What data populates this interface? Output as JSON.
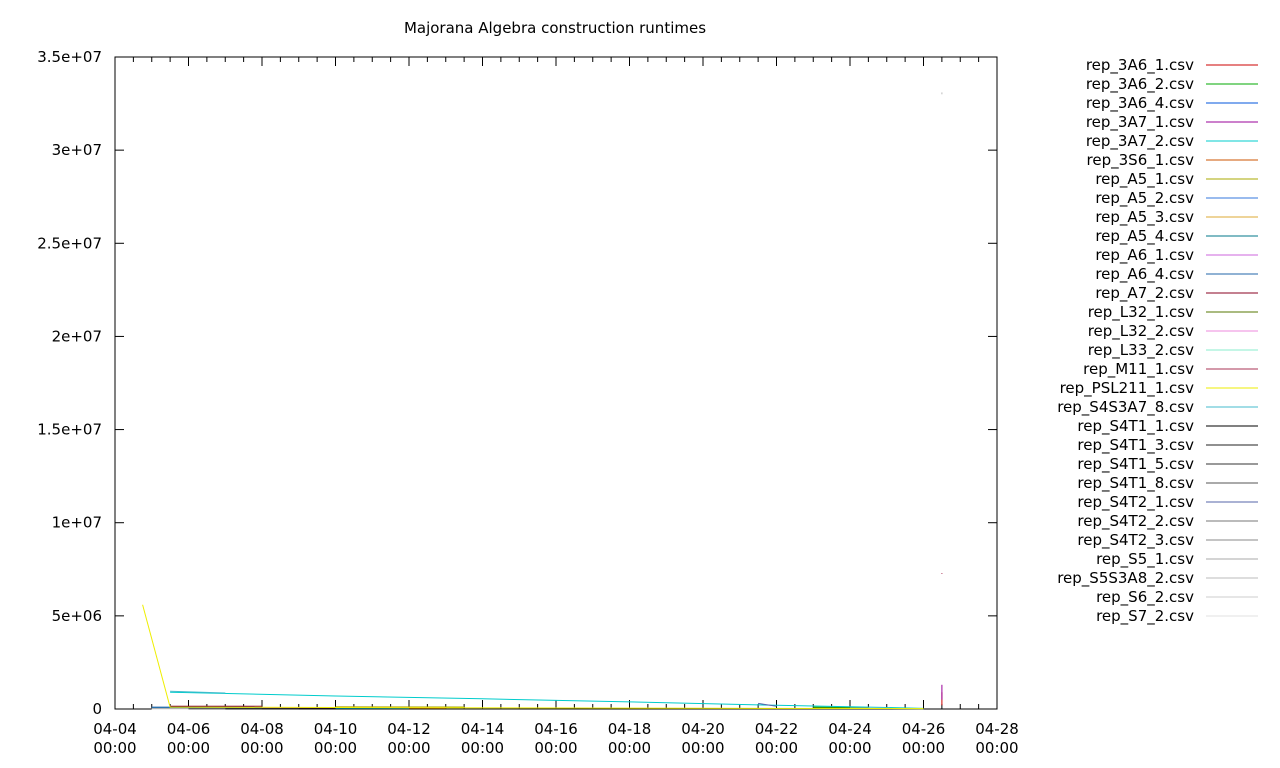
{
  "chart_data": {
    "type": "line",
    "title": "Majorana Algebra construction runtimes",
    "xlabel": "",
    "ylabel": "",
    "legend_position": "outside-right",
    "grid": false,
    "xlim": [
      "04-04 00:00",
      "04-28 00:00"
    ],
    "ylim": [
      0,
      35000000
    ],
    "x_ticks": [
      {
        "value": "04-04 00:00",
        "line1": "04-04",
        "line2": "00:00"
      },
      {
        "value": "04-06 00:00",
        "line1": "04-06",
        "line2": "00:00"
      },
      {
        "value": "04-08 00:00",
        "line1": "04-08",
        "line2": "00:00"
      },
      {
        "value": "04-10 00:00",
        "line1": "04-10",
        "line2": "00:00"
      },
      {
        "value": "04-12 00:00",
        "line1": "04-12",
        "line2": "00:00"
      },
      {
        "value": "04-14 00:00",
        "line1": "04-14",
        "line2": "00:00"
      },
      {
        "value": "04-16 00:00",
        "line1": "04-16",
        "line2": "00:00"
      },
      {
        "value": "04-18 00:00",
        "line1": "04-18",
        "line2": "00:00"
      },
      {
        "value": "04-20 00:00",
        "line1": "04-20",
        "line2": "00:00"
      },
      {
        "value": "04-22 00:00",
        "line1": "04-22",
        "line2": "00:00"
      },
      {
        "value": "04-24 00:00",
        "line1": "04-24",
        "line2": "00:00"
      },
      {
        "value": "04-26 00:00",
        "line1": "04-26",
        "line2": "00:00"
      },
      {
        "value": "04-28 00:00",
        "line1": "04-28",
        "line2": "00:00"
      }
    ],
    "y_ticks": [
      {
        "value": 0,
        "label": "0"
      },
      {
        "value": 5000000,
        "label": "5e+06"
      },
      {
        "value": 10000000,
        "label": "1e+07"
      },
      {
        "value": 15000000,
        "label": "1.5e+07"
      },
      {
        "value": 20000000,
        "label": "2e+07"
      },
      {
        "value": 25000000,
        "label": "2.5e+07"
      },
      {
        "value": 30000000,
        "label": "3e+07"
      },
      {
        "value": 35000000,
        "label": "3.5e+07"
      }
    ],
    "series": [
      {
        "name": "rep_3A6_1.csv",
        "color": "#cc0000",
        "points": [
          [
            "04-26 12:00",
            200000
          ],
          [
            "04-26 12:00",
            900000
          ]
        ]
      },
      {
        "name": "rep_3A6_2.csv",
        "color": "#00aa00",
        "points": [
          [
            "04-23 00:00",
            100000
          ],
          [
            "04-24 12:00",
            80000
          ]
        ]
      },
      {
        "name": "rep_3A6_4.csv",
        "color": "#0055dd",
        "points": [
          [
            "04-05 12:00",
            80000
          ],
          [
            "04-10 00:00",
            60000
          ]
        ]
      },
      {
        "name": "rep_3A7_1.csv",
        "color": "#990099",
        "points": [
          [
            "04-26 12:00",
            500000
          ],
          [
            "04-26 12:00",
            1300000
          ]
        ]
      },
      {
        "name": "rep_3A7_2.csv",
        "color": "#00cccc",
        "points": [
          [
            "04-05 12:00",
            900000
          ],
          [
            "04-06 00:00",
            880000
          ],
          [
            "04-10 00:00",
            700000
          ],
          [
            "04-14 00:00",
            550000
          ],
          [
            "04-18 00:00",
            380000
          ],
          [
            "04-22 00:00",
            200000
          ],
          [
            "04-25 00:00",
            80000
          ],
          [
            "04-26 00:00",
            30000
          ]
        ]
      },
      {
        "name": "rep_3S6_1.csv",
        "color": "#cc5500",
        "points": [
          [
            "04-10 00:00",
            60000
          ],
          [
            "04-13 00:00",
            50000
          ]
        ]
      },
      {
        "name": "rep_A5_1.csv",
        "color": "#aaaa00",
        "points": [
          [
            "04-10 00:00",
            120000
          ],
          [
            "04-13 12:00",
            110000
          ]
        ]
      },
      {
        "name": "rep_A5_2.csv",
        "color": "#3377dd",
        "points": [
          [
            "04-05 00:00",
            50000
          ],
          [
            "04-10 00:00",
            40000
          ]
        ]
      },
      {
        "name": "rep_A5_3.csv",
        "color": "#ddaa33",
        "points": [
          [
            "04-10 00:00",
            90000
          ],
          [
            "04-13 00:00",
            80000
          ]
        ]
      },
      {
        "name": "rep_A5_4.csv",
        "color": "#007788",
        "points": [
          [
            "04-05 00:00",
            40000
          ],
          [
            "04-12 00:00",
            30000
          ]
        ]
      },
      {
        "name": "rep_A6_1.csv",
        "color": "#cc66dd",
        "points": [
          [
            "04-08 00:00",
            60000
          ],
          [
            "04-10 00:00",
            50000
          ]
        ]
      },
      {
        "name": "rep_A6_4.csv",
        "color": "#2266aa",
        "points": [
          [
            "04-05 00:00",
            100000
          ],
          [
            "04-08 00:00",
            90000
          ]
        ]
      },
      {
        "name": "rep_A7_2.csv",
        "color": "#880022",
        "points": [
          [
            "04-05 12:00",
            150000
          ],
          [
            "04-08 00:00",
            150000
          ]
        ]
      },
      {
        "name": "rep_L32_1.csv",
        "color": "#557700",
        "points": [
          [
            "04-23 00:00",
            60000
          ],
          [
            "04-24 12:00",
            50000
          ]
        ]
      },
      {
        "name": "rep_L32_2.csv",
        "color": "#ee88dd",
        "points": [
          [
            "04-24 00:00",
            40000
          ],
          [
            "04-25 12:00",
            30000
          ]
        ]
      },
      {
        "name": "rep_L33_2.csv",
        "color": "#88eecc",
        "points": [
          [
            "04-24 00:00",
            30000
          ],
          [
            "04-26 00:00",
            20000
          ]
        ]
      },
      {
        "name": "rep_M11_1.csv",
        "color": "#aa3355",
        "points": [
          [
            "04-26 12:00",
            7300000
          ],
          [
            "04-26 12:00",
            7250000
          ]
        ]
      },
      {
        "name": "rep_PSL211_1.csv",
        "color": "#eeee00",
        "points": [
          [
            "04-04 18:00",
            5600000
          ],
          [
            "04-05 12:00",
            100000
          ],
          [
            "04-12 00:00",
            70000
          ],
          [
            "04-20 00:00",
            40000
          ],
          [
            "04-26 00:00",
            20000
          ]
        ]
      },
      {
        "name": "rep_S4S3A7_8.csv",
        "color": "#44bbcc",
        "points": [
          [
            "04-05 12:00",
            950000
          ],
          [
            "04-07 00:00",
            860000
          ]
        ]
      },
      {
        "name": "rep_S4T1_1.csv",
        "color": "#000000",
        "points": [
          [
            "04-05 00:00",
            20000
          ],
          [
            "04-10 00:00",
            20000
          ]
        ]
      },
      {
        "name": "rep_S4T1_3.csv",
        "color": "#222222",
        "points": [
          [
            "04-05 00:00",
            15000
          ],
          [
            "04-09 00:00",
            15000
          ]
        ]
      },
      {
        "name": "rep_S4T1_5.csv",
        "color": "#333333",
        "points": [
          [
            "04-05 00:00",
            10000
          ],
          [
            "04-08 00:00",
            10000
          ]
        ]
      },
      {
        "name": "rep_S4T1_8.csv",
        "color": "#555555",
        "points": [
          [
            "04-05 00:00",
            8000
          ],
          [
            "04-07 00:00",
            8000
          ]
        ]
      },
      {
        "name": "rep_S4T2_1.csv",
        "color": "#5566aa",
        "points": [
          [
            "04-21 12:00",
            300000
          ],
          [
            "04-22 00:00",
            150000
          ]
        ]
      },
      {
        "name": "rep_S4T2_2.csv",
        "color": "#777777",
        "points": [
          [
            "04-05 00:00",
            6000
          ],
          [
            "04-07 00:00",
            6000
          ]
        ]
      },
      {
        "name": "rep_S4T2_3.csv",
        "color": "#888888",
        "points": [
          [
            "04-05 00:00",
            5000
          ],
          [
            "04-06 00:00",
            5000
          ]
        ]
      },
      {
        "name": "rep_S5_1.csv",
        "color": "#aaaaaa",
        "points": [
          [
            "04-05 00:00",
            4000
          ],
          [
            "04-06 00:00",
            4000
          ]
        ]
      },
      {
        "name": "rep_S5S3A8_2.csv",
        "color": "#bbbbbb",
        "points": [
          [
            "04-26 12:00",
            33000000
          ],
          [
            "04-26 12:00",
            33100000
          ]
        ]
      },
      {
        "name": "rep_S6_2.csv",
        "color": "#cccccc",
        "points": [
          [
            "04-05 00:00",
            3000
          ],
          [
            "04-06 00:00",
            3000
          ]
        ]
      },
      {
        "name": "rep_S7_2.csv",
        "color": "#e0e0e0",
        "points": [
          [
            "04-05 00:00",
            2000
          ],
          [
            "04-06 00:00",
            2000
          ]
        ]
      }
    ]
  }
}
